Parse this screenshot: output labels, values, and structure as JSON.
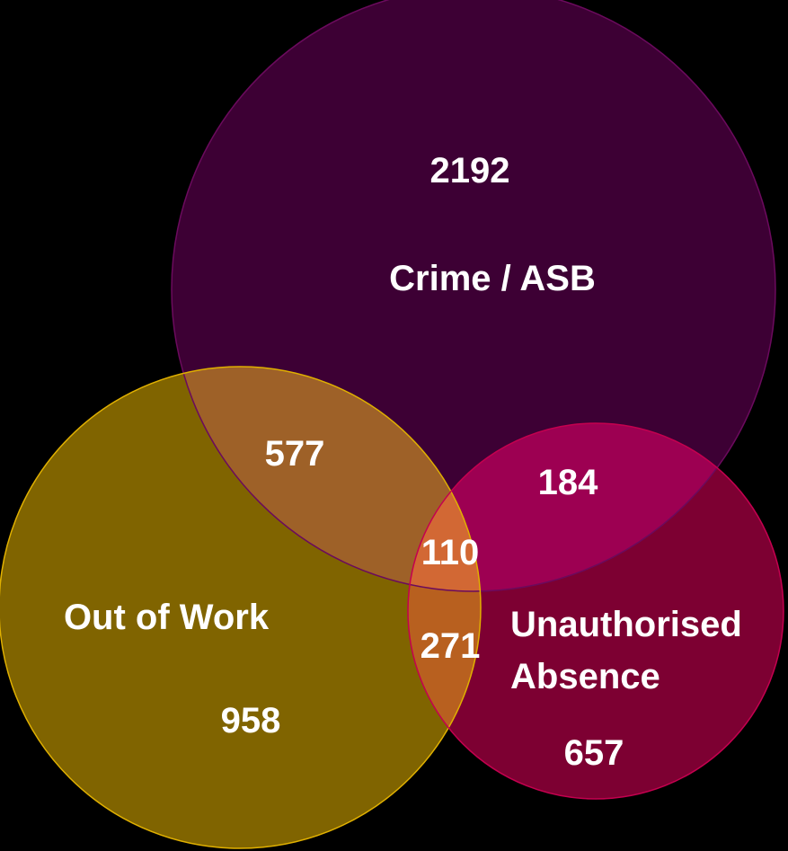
{
  "background_color": "#000000",
  "sets": [
    {
      "id": "crime",
      "label": "Crime / ASB",
      "fill": "#3d0034",
      "stroke": "#6b0a5d"
    },
    {
      "id": "work",
      "label": "Out of Work",
      "fill": "#806400",
      "stroke": "#e0b000"
    },
    {
      "id": "absence",
      "label_line1": "Unauthorised",
      "label_line2": "Absence",
      "fill": "#7d0032",
      "stroke": "#c4004f"
    }
  ],
  "regions": {
    "crime_only": "2192",
    "work_only": "958",
    "absence_only": "657",
    "crime_work": "577",
    "crime_absence": "184",
    "all_three": "110",
    "work_absence": "271"
  },
  "overlap_colors": {
    "crime_work": "#9e6128",
    "crime_absence": "#9d0052",
    "work_absence": "#b8601f",
    "all_three": "#d26834"
  }
}
